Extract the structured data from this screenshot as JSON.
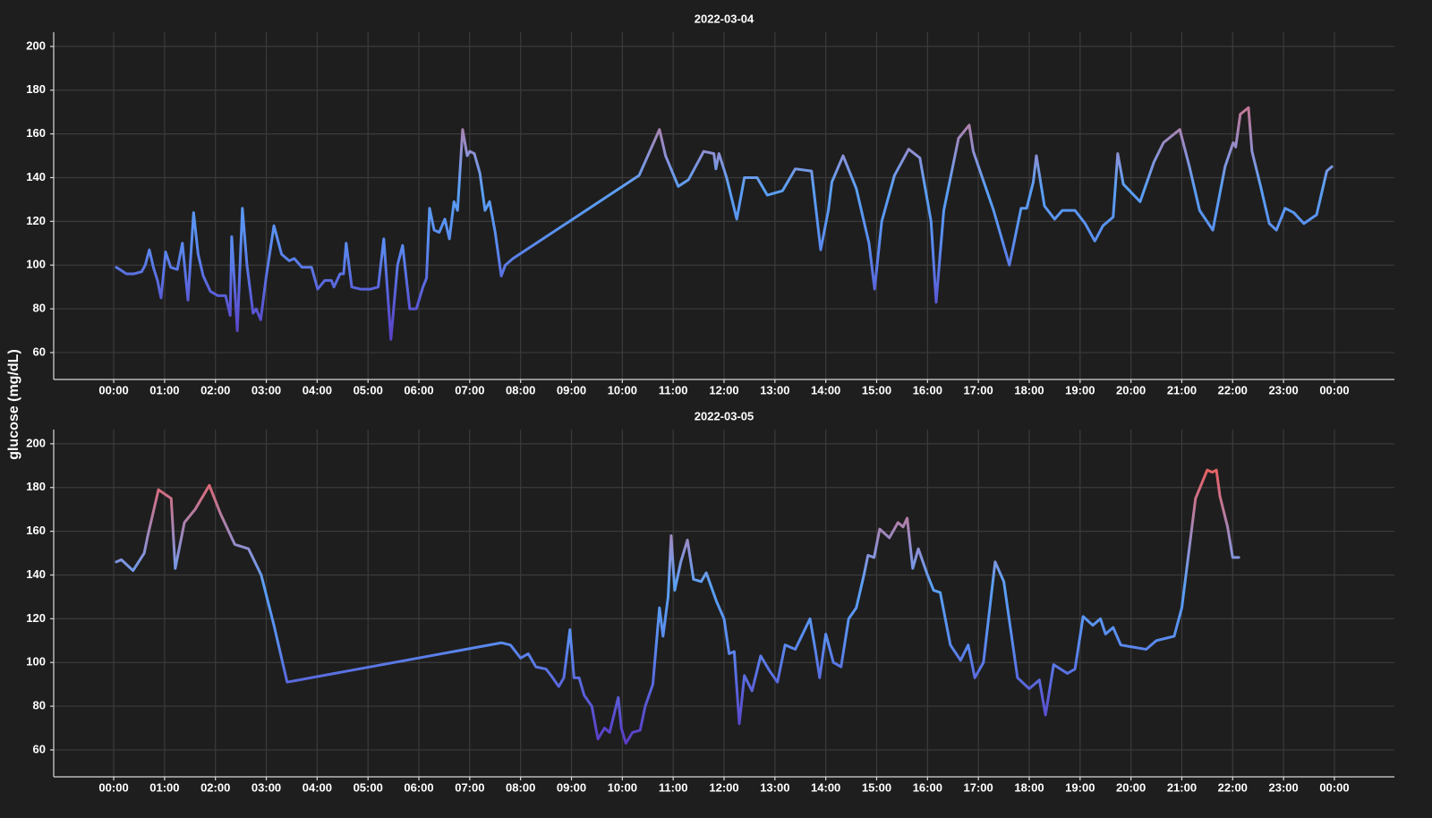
{
  "chart_data": [
    {
      "type": "line",
      "title": "2022-03-04",
      "ylabel": "glucose (mg/dL)",
      "x": [
        0.05,
        0.12,
        0.25,
        0.4,
        0.55,
        0.62,
        0.7,
        0.78,
        0.86,
        0.93,
        1.02,
        1.12,
        1.25,
        1.35,
        1.46,
        1.57,
        1.66,
        1.76,
        1.9,
        2.05,
        2.2,
        2.29,
        2.32,
        2.43,
        2.53,
        2.62,
        2.74,
        2.8,
        2.89,
        3.0,
        3.15,
        3.3,
        3.45,
        3.55,
        3.7,
        3.89,
        4.01,
        4.15,
        4.28,
        4.33,
        4.45,
        4.52,
        4.57,
        4.68,
        4.85,
        5.05,
        5.2,
        5.31,
        5.45,
        5.58,
        5.68,
        5.82,
        5.95,
        6.08,
        6.15,
        6.21,
        6.3,
        6.4,
        6.51,
        6.6,
        6.69,
        6.76,
        6.86,
        6.95,
        7.0,
        7.09,
        7.2,
        7.3,
        7.39,
        7.5,
        7.62,
        7.7,
        7.85,
        10.33,
        10.73,
        10.85,
        11.1,
        11.3,
        11.6,
        11.8,
        11.84,
        11.9,
        12.05,
        12.25,
        12.4,
        12.65,
        12.85,
        13.15,
        13.4,
        13.72,
        13.9,
        14.05,
        14.12,
        14.34,
        14.6,
        14.85,
        14.96,
        15.1,
        15.35,
        15.63,
        15.85,
        16.07,
        16.17,
        16.32,
        16.61,
        16.82,
        16.9,
        17.3,
        17.61,
        17.84,
        17.95,
        18.08,
        18.14,
        18.3,
        18.5,
        18.65,
        18.9,
        19.1,
        19.29,
        19.45,
        19.65,
        19.74,
        19.85,
        20.18,
        20.45,
        20.64,
        20.96,
        21.15,
        21.35,
        21.61,
        21.85,
        22.01,
        22.06,
        22.15,
        22.31,
        22.38,
        22.55,
        22.72,
        22.86,
        23.03,
        23.2,
        23.4,
        23.65,
        23.85,
        23.95
      ],
      "values": [
        99,
        98,
        96,
        96,
        97,
        100,
        107,
        99,
        93,
        85,
        106,
        99,
        98,
        110,
        84,
        124,
        105,
        95,
        88,
        86,
        86,
        77,
        113,
        70,
        126,
        100,
        78,
        80,
        75,
        95,
        118,
        105,
        102,
        103,
        99,
        99,
        89,
        93,
        93,
        90,
        96,
        96,
        110,
        90,
        89,
        89,
        90,
        112,
        66,
        100,
        109,
        80,
        80,
        90,
        94,
        126,
        116,
        115,
        121,
        112,
        129,
        125,
        162,
        150,
        152,
        151,
        142,
        125,
        129,
        115,
        95,
        100,
        103,
        141,
        162,
        150,
        136,
        139,
        152,
        151,
        144,
        151,
        140,
        121,
        140,
        140,
        132,
        134,
        144,
        143,
        107,
        125,
        138,
        150,
        135,
        110,
        89,
        120,
        141,
        153,
        149,
        120,
        83,
        125,
        158,
        164,
        152,
        125,
        100,
        126,
        126,
        138,
        150,
        127,
        121,
        125,
        125,
        119,
        111,
        118,
        122,
        151,
        137,
        129,
        147,
        156,
        162,
        145,
        125,
        116,
        145,
        156,
        154,
        169,
        172,
        152,
        136,
        119,
        116,
        126,
        124,
        119,
        123,
        143,
        145
      ],
      "xlim": [
        -1.18,
        25.18
      ],
      "ylim": [
        47.7,
        206.5
      ],
      "xticks": [
        {
          "value": 0,
          "label": "00:00"
        },
        {
          "value": 1,
          "label": "01:00"
        },
        {
          "value": 2,
          "label": "02:00"
        },
        {
          "value": 3,
          "label": "03:00"
        },
        {
          "value": 4,
          "label": "04:00"
        },
        {
          "value": 5,
          "label": "05:00"
        },
        {
          "value": 6,
          "label": "06:00"
        },
        {
          "value": 7,
          "label": "07:00"
        },
        {
          "value": 8,
          "label": "08:00"
        },
        {
          "value": 9,
          "label": "09:00"
        },
        {
          "value": 10,
          "label": "10:00"
        },
        {
          "value": 11,
          "label": "11:00"
        },
        {
          "value": 12,
          "label": "12:00"
        },
        {
          "value": 13,
          "label": "13:00"
        },
        {
          "value": 14,
          "label": "14:00"
        },
        {
          "value": 15,
          "label": "15:00"
        },
        {
          "value": 16,
          "label": "16:00"
        },
        {
          "value": 17,
          "label": "17:00"
        },
        {
          "value": 18,
          "label": "18:00"
        },
        {
          "value": 19,
          "label": "19:00"
        },
        {
          "value": 20,
          "label": "20:00"
        },
        {
          "value": 21,
          "label": "21:00"
        },
        {
          "value": 22,
          "label": "22:00"
        },
        {
          "value": 23,
          "label": "23:00"
        },
        {
          "value": 24,
          "label": "00:00"
        }
      ],
      "yticks": [
        60,
        80,
        100,
        120,
        140,
        160,
        180,
        200
      ],
      "grid": true,
      "colorscale": [
        [
          60,
          "#5b38c2"
        ],
        [
          85,
          "#5a5ed8"
        ],
        [
          110,
          "#5a8cf0"
        ],
        [
          135,
          "#5aa0f4"
        ],
        [
          150,
          "#8a92d8"
        ],
        [
          165,
          "#b080a8"
        ],
        [
          180,
          "#d86a7c"
        ],
        [
          190,
          "#e8605e"
        ]
      ]
    },
    {
      "type": "line",
      "title": "2022-03-05",
      "x": [
        0.05,
        0.15,
        0.38,
        0.6,
        0.67,
        0.88,
        1.13,
        1.21,
        1.39,
        1.6,
        1.88,
        2.1,
        2.38,
        2.65,
        2.9,
        3.15,
        3.41,
        7.62,
        7.8,
        8.0,
        8.15,
        8.3,
        8.5,
        8.6,
        8.75,
        8.85,
        8.97,
        9.05,
        9.15,
        9.25,
        9.4,
        9.52,
        9.65,
        9.75,
        9.92,
        9.98,
        10.07,
        10.2,
        10.35,
        10.45,
        10.6,
        10.73,
        10.8,
        10.9,
        10.96,
        11.03,
        11.15,
        11.28,
        11.4,
        11.55,
        11.65,
        11.85,
        12.0,
        12.1,
        12.2,
        12.3,
        12.4,
        12.55,
        12.72,
        12.9,
        13.05,
        13.2,
        13.4,
        13.69,
        13.8,
        13.88,
        14.0,
        14.15,
        14.3,
        14.45,
        14.6,
        14.75,
        14.83,
        14.95,
        15.06,
        15.25,
        15.42,
        15.52,
        15.6,
        15.71,
        15.82,
        16.0,
        16.12,
        16.25,
        16.45,
        16.65,
        16.8,
        16.93,
        17.1,
        17.33,
        17.5,
        17.77,
        18.0,
        18.2,
        18.32,
        18.48,
        18.75,
        18.9,
        19.06,
        19.25,
        19.4,
        19.5,
        19.65,
        19.8,
        20.05,
        20.3,
        20.5,
        20.85,
        21.0,
        21.13,
        21.27,
        21.5,
        21.6,
        21.68,
        21.75,
        21.9,
        22.0,
        22.12
      ],
      "values": [
        146,
        147,
        142,
        150,
        158,
        179,
        175,
        143,
        164,
        170,
        181,
        168,
        154,
        152,
        140,
        117,
        91,
        109,
        108,
        102,
        104,
        98,
        97,
        94,
        89,
        93,
        115,
        93,
        93,
        85,
        80,
        65,
        70,
        68,
        84,
        70,
        63,
        68,
        69,
        80,
        90,
        125,
        112,
        130,
        158,
        133,
        146,
        156,
        138,
        137,
        141,
        128,
        120,
        104,
        105,
        72,
        94,
        87,
        103,
        96,
        91,
        108,
        106,
        120,
        105,
        93,
        113,
        100,
        98,
        120,
        125,
        140,
        149,
        148,
        161,
        157,
        164,
        162,
        166,
        143,
        152,
        140,
        133,
        132,
        108,
        101,
        108,
        93,
        100,
        146,
        137,
        93,
        88,
        92,
        76,
        99,
        95,
        97,
        121,
        117,
        120,
        113,
        116,
        108,
        107,
        106,
        110,
        112,
        125,
        149,
        175,
        188,
        187,
        188,
        176,
        162,
        148,
        148
      ],
      "xlim": [
        -1.18,
        25.18
      ],
      "ylim": [
        47.7,
        206.5
      ],
      "xticks": [
        {
          "value": 0,
          "label": "00:00"
        },
        {
          "value": 1,
          "label": "01:00"
        },
        {
          "value": 2,
          "label": "02:00"
        },
        {
          "value": 3,
          "label": "03:00"
        },
        {
          "value": 4,
          "label": "04:00"
        },
        {
          "value": 5,
          "label": "05:00"
        },
        {
          "value": 6,
          "label": "06:00"
        },
        {
          "value": 7,
          "label": "07:00"
        },
        {
          "value": 8,
          "label": "08:00"
        },
        {
          "value": 9,
          "label": "09:00"
        },
        {
          "value": 10,
          "label": "10:00"
        },
        {
          "value": 11,
          "label": "11:00"
        },
        {
          "value": 12,
          "label": "12:00"
        },
        {
          "value": 13,
          "label": "13:00"
        },
        {
          "value": 14,
          "label": "14:00"
        },
        {
          "value": 15,
          "label": "15:00"
        },
        {
          "value": 16,
          "label": "16:00"
        },
        {
          "value": 17,
          "label": "17:00"
        },
        {
          "value": 18,
          "label": "18:00"
        },
        {
          "value": 19,
          "label": "19:00"
        },
        {
          "value": 20,
          "label": "20:00"
        },
        {
          "value": 21,
          "label": "21:00"
        },
        {
          "value": 22,
          "label": "22:00"
        },
        {
          "value": 23,
          "label": "23:00"
        },
        {
          "value": 24,
          "label": "00:00"
        }
      ],
      "yticks": [
        60,
        80,
        100,
        120,
        140,
        160,
        180,
        200
      ],
      "grid": true,
      "colorscale": [
        [
          60,
          "#5b38c2"
        ],
        [
          85,
          "#5a5ed8"
        ],
        [
          110,
          "#5a8cf0"
        ],
        [
          135,
          "#5aa0f4"
        ],
        [
          150,
          "#8a92d8"
        ],
        [
          165,
          "#b080a8"
        ],
        [
          180,
          "#d86a7c"
        ],
        [
          190,
          "#e8605e"
        ]
      ]
    }
  ]
}
